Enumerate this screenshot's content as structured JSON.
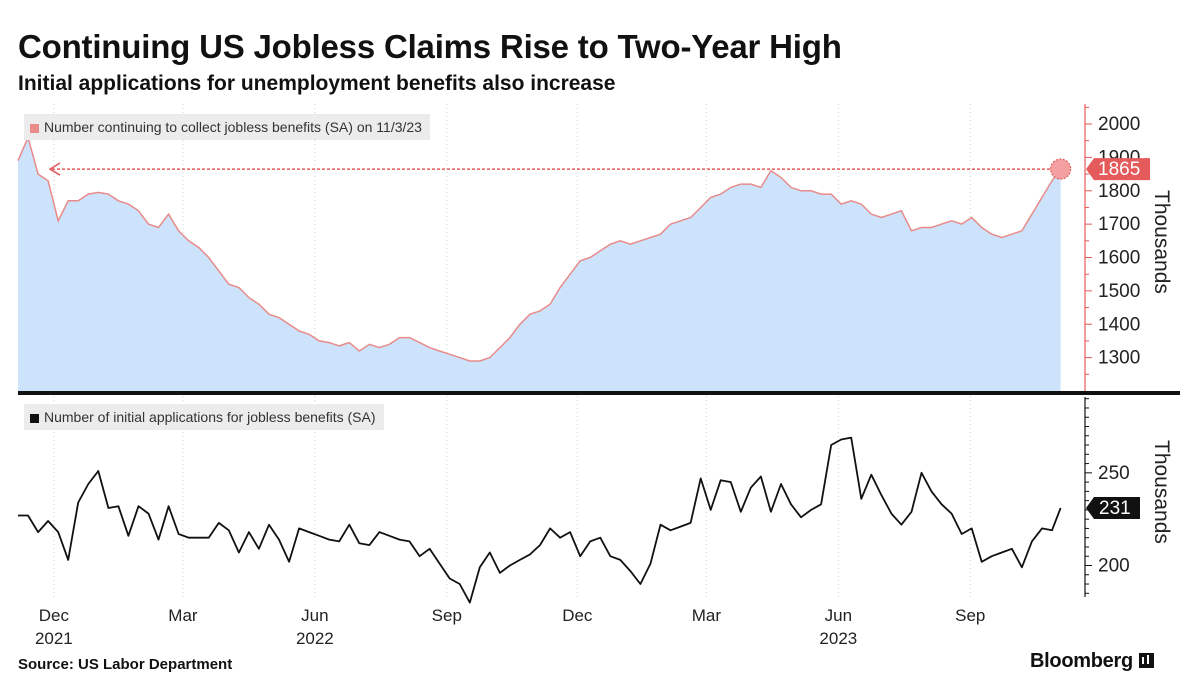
{
  "title": "Continuing US Jobless Claims Rise to Two-Year High",
  "subtitle": "Initial applications for unemployment benefits also increase",
  "source": "Source: US Labor Department",
  "brand": "Bloomberg",
  "colors": {
    "area_fill": "#cce3fb",
    "area_line": "#e98b8b",
    "highlight": "#e55a5a",
    "line": "#111111",
    "legend_bg": "#ececec"
  },
  "chart_data": [
    {
      "type": "area",
      "legend": "Number continuing to collect jobless benefits (SA) on 11/3/23",
      "ylabel": "Thousands",
      "ylim": [
        1200,
        2060
      ],
      "yticks": [
        1300,
        1400,
        1500,
        1600,
        1700,
        1800,
        1900,
        2000
      ],
      "x_range": [
        "2021-11-06",
        "2023-11-20"
      ],
      "last_value_label": "1865",
      "last_value_date": "2023-11-03",
      "reference_line": 1865,
      "series": [
        {
          "points": [
            [
              "2021-11-06",
              1890
            ],
            [
              "2021-11-13",
              1960
            ],
            [
              "2021-11-20",
              1850
            ],
            [
              "2021-11-27",
              1830
            ],
            [
              "2021-12-04",
              1710
            ],
            [
              "2021-12-11",
              1770
            ],
            [
              "2021-12-18",
              1770
            ],
            [
              "2021-12-25",
              1790
            ],
            [
              "2022-01-01",
              1795
            ],
            [
              "2022-01-08",
              1790
            ],
            [
              "2022-01-15",
              1770
            ],
            [
              "2022-01-22",
              1760
            ],
            [
              "2022-01-29",
              1740
            ],
            [
              "2022-02-05",
              1700
            ],
            [
              "2022-02-12",
              1690
            ],
            [
              "2022-02-19",
              1730
            ],
            [
              "2022-02-26",
              1680
            ],
            [
              "2022-03-05",
              1650
            ],
            [
              "2022-03-12",
              1630
            ],
            [
              "2022-03-19",
              1600
            ],
            [
              "2022-03-26",
              1560
            ],
            [
              "2022-04-02",
              1520
            ],
            [
              "2022-04-09",
              1510
            ],
            [
              "2022-04-16",
              1480
            ],
            [
              "2022-04-23",
              1460
            ],
            [
              "2022-04-30",
              1430
            ],
            [
              "2022-05-07",
              1420
            ],
            [
              "2022-05-14",
              1400
            ],
            [
              "2022-05-21",
              1380
            ],
            [
              "2022-05-28",
              1370
            ],
            [
              "2022-06-04",
              1350
            ],
            [
              "2022-06-11",
              1345
            ],
            [
              "2022-06-18",
              1335
            ],
            [
              "2022-06-25",
              1345
            ],
            [
              "2022-07-02",
              1320
            ],
            [
              "2022-07-09",
              1340
            ],
            [
              "2022-07-16",
              1330
            ],
            [
              "2022-07-23",
              1340
            ],
            [
              "2022-07-30",
              1360
            ],
            [
              "2022-08-06",
              1360
            ],
            [
              "2022-08-13",
              1345
            ],
            [
              "2022-08-20",
              1330
            ],
            [
              "2022-08-27",
              1320
            ],
            [
              "2022-09-03",
              1310
            ],
            [
              "2022-09-10",
              1300
            ],
            [
              "2022-09-17",
              1290
            ],
            [
              "2022-09-24",
              1290
            ],
            [
              "2022-10-01",
              1300
            ],
            [
              "2022-10-08",
              1330
            ],
            [
              "2022-10-15",
              1360
            ],
            [
              "2022-10-22",
              1400
            ],
            [
              "2022-10-29",
              1430
            ],
            [
              "2022-11-05",
              1440
            ],
            [
              "2022-11-12",
              1460
            ],
            [
              "2022-11-19",
              1510
            ],
            [
              "2022-11-26",
              1550
            ],
            [
              "2022-12-03",
              1590
            ],
            [
              "2022-12-10",
              1600
            ],
            [
              "2022-12-17",
              1620
            ],
            [
              "2022-12-24",
              1640
            ],
            [
              "2022-12-31",
              1650
            ],
            [
              "2023-01-07",
              1640
            ],
            [
              "2023-01-14",
              1650
            ],
            [
              "2023-01-21",
              1660
            ],
            [
              "2023-01-28",
              1670
            ],
            [
              "2023-02-04",
              1700
            ],
            [
              "2023-02-11",
              1710
            ],
            [
              "2023-02-18",
              1720
            ],
            [
              "2023-02-25",
              1750
            ],
            [
              "2023-03-04",
              1780
            ],
            [
              "2023-03-11",
              1790
            ],
            [
              "2023-03-18",
              1810
            ],
            [
              "2023-03-25",
              1820
            ],
            [
              "2023-04-01",
              1820
            ],
            [
              "2023-04-08",
              1810
            ],
            [
              "2023-04-15",
              1860
            ],
            [
              "2023-04-22",
              1840
            ],
            [
              "2023-04-29",
              1810
            ],
            [
              "2023-05-06",
              1800
            ],
            [
              "2023-05-13",
              1800
            ],
            [
              "2023-05-20",
              1790
            ],
            [
              "2023-05-27",
              1790
            ],
            [
              "2023-06-03",
              1760
            ],
            [
              "2023-06-10",
              1770
            ],
            [
              "2023-06-17",
              1760
            ],
            [
              "2023-06-24",
              1730
            ],
            [
              "2023-07-01",
              1720
            ],
            [
              "2023-07-08",
              1730
            ],
            [
              "2023-07-15",
              1740
            ],
            [
              "2023-07-22",
              1680
            ],
            [
              "2023-07-29",
              1690
            ],
            [
              "2023-08-05",
              1690
            ],
            [
              "2023-08-12",
              1700
            ],
            [
              "2023-08-19",
              1710
            ],
            [
              "2023-08-26",
              1700
            ],
            [
              "2023-09-02",
              1720
            ],
            [
              "2023-09-09",
              1690
            ],
            [
              "2023-09-16",
              1670
            ],
            [
              "2023-09-23",
              1660
            ],
            [
              "2023-09-30",
              1670
            ],
            [
              "2023-10-07",
              1680
            ],
            [
              "2023-10-14",
              1730
            ],
            [
              "2023-10-21",
              1780
            ],
            [
              "2023-10-28",
              1830
            ],
            [
              "2023-11-03",
              1865
            ]
          ]
        }
      ]
    },
    {
      "type": "line",
      "legend": "Number of initial applications for jobless benefits (SA)",
      "ylabel": "Thousands",
      "ylim": [
        183,
        292
      ],
      "yticks": [
        200,
        250
      ],
      "x_range": [
        "2021-11-06",
        "2023-11-20"
      ],
      "last_value_label": "231",
      "series": [
        {
          "points": [
            [
              "2021-11-06",
              227
            ],
            [
              "2021-11-13",
              227
            ],
            [
              "2021-11-20",
              218
            ],
            [
              "2021-11-27",
              224
            ],
            [
              "2021-12-04",
              218
            ],
            [
              "2021-12-11",
              203
            ],
            [
              "2021-12-18",
              234
            ],
            [
              "2021-12-25",
              244
            ],
            [
              "2022-01-01",
              251
            ],
            [
              "2022-01-08",
              231
            ],
            [
              "2022-01-15",
              232
            ],
            [
              "2022-01-22",
              216
            ],
            [
              "2022-01-29",
              232
            ],
            [
              "2022-02-05",
              228
            ],
            [
              "2022-02-12",
              214
            ],
            [
              "2022-02-19",
              232
            ],
            [
              "2022-02-26",
              217
            ],
            [
              "2022-03-05",
              215
            ],
            [
              "2022-03-12",
              215
            ],
            [
              "2022-03-19",
              215
            ],
            [
              "2022-03-26",
              223
            ],
            [
              "2022-04-02",
              219
            ],
            [
              "2022-04-09",
              207
            ],
            [
              "2022-04-16",
              218
            ],
            [
              "2022-04-23",
              209
            ],
            [
              "2022-04-30",
              222
            ],
            [
              "2022-05-07",
              214
            ],
            [
              "2022-05-14",
              202
            ],
            [
              "2022-05-21",
              220
            ],
            [
              "2022-05-28",
              218
            ],
            [
              "2022-06-04",
              216
            ],
            [
              "2022-06-11",
              214
            ],
            [
              "2022-06-18",
              213
            ],
            [
              "2022-06-25",
              222
            ],
            [
              "2022-07-02",
              212
            ],
            [
              "2022-07-09",
              211
            ],
            [
              "2022-07-16",
              218
            ],
            [
              "2022-07-23",
              216
            ],
            [
              "2022-07-30",
              214
            ],
            [
              "2022-08-06",
              213
            ],
            [
              "2022-08-13",
              205
            ],
            [
              "2022-08-20",
              209
            ],
            [
              "2022-08-27",
              201
            ],
            [
              "2022-09-03",
              193
            ],
            [
              "2022-09-10",
              190
            ],
            [
              "2022-09-17",
              180
            ],
            [
              "2022-09-24",
              199
            ],
            [
              "2022-10-01",
              207
            ],
            [
              "2022-10-08",
              196
            ],
            [
              "2022-10-15",
              200
            ],
            [
              "2022-10-22",
              203
            ],
            [
              "2022-10-29",
              206
            ],
            [
              "2022-11-05",
              211
            ],
            [
              "2022-11-12",
              220
            ],
            [
              "2022-11-19",
              215
            ],
            [
              "2022-11-26",
              218
            ],
            [
              "2022-12-03",
              205
            ],
            [
              "2022-12-10",
              213
            ],
            [
              "2022-12-17",
              215
            ],
            [
              "2022-12-24",
              205
            ],
            [
              "2022-12-31",
              203
            ],
            [
              "2023-01-07",
              197
            ],
            [
              "2023-01-14",
              190
            ],
            [
              "2023-01-21",
              201
            ],
            [
              "2023-01-28",
              222
            ],
            [
              "2023-02-04",
              219
            ],
            [
              "2023-02-11",
              221
            ],
            [
              "2023-02-18",
              223
            ],
            [
              "2023-02-25",
              247
            ],
            [
              "2023-03-04",
              230
            ],
            [
              "2023-03-11",
              246
            ],
            [
              "2023-03-18",
              245
            ],
            [
              "2023-03-25",
              229
            ],
            [
              "2023-04-01",
              242
            ],
            [
              "2023-04-08",
              248
            ],
            [
              "2023-04-15",
              229
            ],
            [
              "2023-04-22",
              244
            ],
            [
              "2023-04-29",
              233
            ],
            [
              "2023-05-06",
              226
            ],
            [
              "2023-05-13",
              230
            ],
            [
              "2023-05-20",
              233
            ],
            [
              "2023-05-27",
              265
            ],
            [
              "2023-06-03",
              268
            ],
            [
              "2023-06-10",
              269
            ],
            [
              "2023-06-17",
              236
            ],
            [
              "2023-06-24",
              249
            ],
            [
              "2023-07-01",
              238
            ],
            [
              "2023-07-08",
              228
            ],
            [
              "2023-07-15",
              222
            ],
            [
              "2023-07-22",
              229
            ],
            [
              "2023-07-29",
              250
            ],
            [
              "2023-08-05",
              240
            ],
            [
              "2023-08-12",
              233
            ],
            [
              "2023-08-19",
              228
            ],
            [
              "2023-08-26",
              217
            ],
            [
              "2023-09-02",
              220
            ],
            [
              "2023-09-09",
              202
            ],
            [
              "2023-09-16",
              205
            ],
            [
              "2023-09-23",
              207
            ],
            [
              "2023-09-30",
              209
            ],
            [
              "2023-10-07",
              199
            ],
            [
              "2023-10-14",
              213
            ],
            [
              "2023-10-21",
              220
            ],
            [
              "2023-10-28",
              219
            ],
            [
              "2023-11-03",
              231
            ]
          ]
        }
      ]
    }
  ],
  "x_axis": {
    "ticks": [
      {
        "date": "2021-12-01",
        "label": "Dec",
        "year": "2021"
      },
      {
        "date": "2022-03-01",
        "label": "Mar",
        "year": ""
      },
      {
        "date": "2022-06-01",
        "label": "Jun",
        "year": "2022"
      },
      {
        "date": "2022-09-01",
        "label": "Sep",
        "year": ""
      },
      {
        "date": "2022-12-01",
        "label": "Dec",
        "year": ""
      },
      {
        "date": "2023-03-01",
        "label": "Mar",
        "year": ""
      },
      {
        "date": "2023-06-01",
        "label": "Jun",
        "year": "2023"
      },
      {
        "date": "2023-09-01",
        "label": "Sep",
        "year": ""
      }
    ]
  }
}
